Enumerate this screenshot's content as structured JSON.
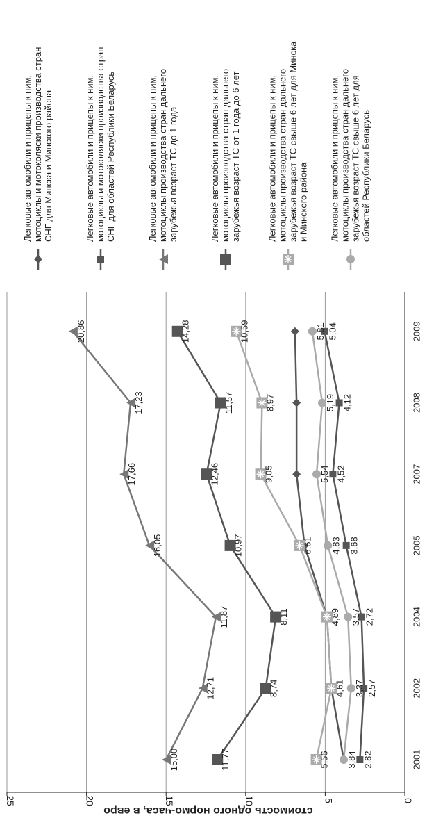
{
  "chart_data": {
    "type": "line",
    "title": "",
    "xlabel": "",
    "ylabel": "стоимость одного нормо-часа,  в евро",
    "ylim": [
      0,
      25
    ],
    "yticks": [
      "0",
      "5",
      "10",
      "15",
      "20",
      "25"
    ],
    "grid": true,
    "legend_position": "right",
    "categories": [
      "2001",
      "2002",
      "2004",
      "2005",
      "2007",
      "2008",
      "2009"
    ],
    "series": [
      {
        "name": "Легковые автомобили и прицепы к ним, мотоциклы и мотоколяски производства стран СНГ для Минска и Минского района",
        "values": [
          3.84,
          4.61,
          4.89,
          6.3,
          6.8,
          6.8,
          6.9
        ],
        "labels": [
          "3,84",
          "4,61",
          "4,89",
          "",
          "",
          "",
          ""
        ],
        "color": "#555555",
        "marker": "diamond"
      },
      {
        "name": "Легковые автомобили и прицепы к ним, мотоциклы и мотоколяски производства стран СНГ для областей Республики Беларусь",
        "values": [
          2.82,
          2.57,
          2.72,
          3.68,
          4.52,
          4.12,
          5.04
        ],
        "labels": [
          "2,82",
          "2,57",
          "2,72",
          "3,68",
          "4,52",
          "4,12",
          "5,04"
        ],
        "color": "#555555",
        "marker": "square-small"
      },
      {
        "name": "Легковые автомобили и прицепы к ним, мотоциклы производства стран дальнего зарубежья возраст ТС до 1 года",
        "values": [
          15.0,
          12.71,
          11.87,
          16.05,
          17.66,
          17.23,
          20.86
        ],
        "labels": [
          "15,00",
          "12,71",
          "11,87",
          "16,05",
          "17,66",
          "17,23",
          "20,86"
        ],
        "color": "#777777",
        "marker": "triangle"
      },
      {
        "name": "Легковые автомобили и прицепы к ним, мотоциклы производства стран дальнего зарубежья возраст ТС от 1 года до 6 лет",
        "values": [
          11.77,
          8.74,
          8.11,
          10.97,
          12.46,
          11.57,
          14.28
        ],
        "labels": [
          "11,77",
          "8,74",
          "8,11",
          "10,97",
          "12,46",
          "11,57",
          "14,28"
        ],
        "color": "#555555",
        "marker": "square-large"
      },
      {
        "name": "Легковые автомобили и прицепы к ним, мотоциклы производства стран дальнего зарубежья возраст ТС свыше 6 лет для Минска и Минского района",
        "values": [
          5.56,
          4.61,
          4.89,
          6.61,
          9.05,
          8.97,
          10.59
        ],
        "labels": [
          "5,56",
          "",
          "",
          "6,61",
          "9,05",
          "8,97",
          "10,59"
        ],
        "color": "#aaaaaa",
        "marker": "asterisk-square"
      },
      {
        "name": "Легковые автомобили и прицепы к ним, мотоциклы производства стран дальнего зарубежья возраст ТС свыше 6 лет для областей Республики Беларусь",
        "values": [
          3.84,
          3.37,
          3.57,
          4.83,
          5.54,
          5.19,
          5.81
        ],
        "labels": [
          "",
          "3,37",
          "3,57",
          "4,83",
          "5,54",
          "5,19",
          "5,81"
        ],
        "color": "#aaaaaa",
        "marker": "circle"
      }
    ]
  }
}
